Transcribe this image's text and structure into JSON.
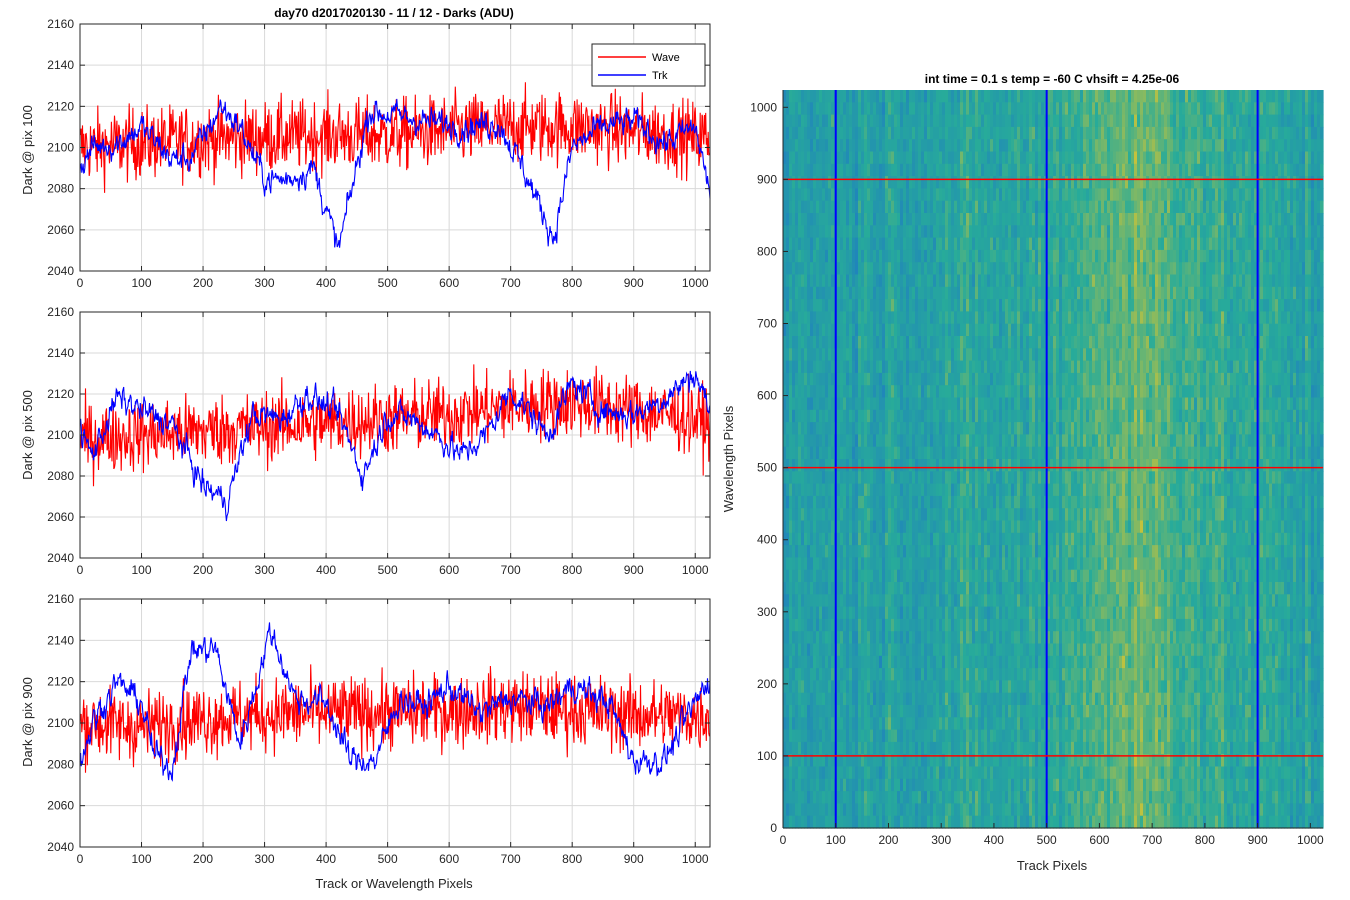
{
  "figure_title": "day70 d2017020130 - 11 / 12 - Darks (ADU)",
  "colors": {
    "wave": "#ff0000",
    "trk": "#0000ff",
    "grid": "#d9d9d9",
    "axis": "#262626",
    "heat_low": "#1f7fc0",
    "heat_mid": "#27ab9a",
    "heat_high": "#c7c33a"
  },
  "chart_data": [
    {
      "type": "line",
      "title": "day70 d2017020130 - 11 / 12 - Darks (ADU)",
      "xlabel": "",
      "ylabel": "Dark @ pix 100",
      "xlim": [
        0,
        1024
      ],
      "ylim": [
        2040,
        2160
      ],
      "xticks": [
        0,
        100,
        200,
        300,
        400,
        500,
        600,
        700,
        800,
        900,
        1000
      ],
      "yticks": [
        2040,
        2060,
        2080,
        2100,
        2120,
        2140,
        2160
      ],
      "grid": true,
      "legend": {
        "placement": "top-right",
        "entries": [
          "Wave",
          "Trk"
        ]
      },
      "series": [
        {
          "name": "Wave",
          "color": "#ff0000",
          "mean": 2105,
          "noise": 16,
          "x": [
            0,
            100,
            200,
            300,
            400,
            500,
            600,
            700,
            800,
            900,
            1000,
            1024
          ],
          "values": [
            2100,
            2102,
            2104,
            2105,
            2106,
            2106,
            2108,
            2110,
            2110,
            2108,
            2105,
            2105
          ]
        },
        {
          "name": "Trk",
          "color": "#0000ff",
          "mean": 2100,
          "noise": 4,
          "x": [
            0,
            20,
            60,
            100,
            150,
            180,
            230,
            260,
            300,
            330,
            380,
            420,
            470,
            520,
            580,
            620,
            680,
            720,
            770,
            800,
            850,
            900,
            950,
            1000,
            1024
          ],
          "values": [
            2090,
            2100,
            2102,
            2110,
            2094,
            2095,
            2120,
            2110,
            2085,
            2084,
            2090,
            2050,
            2118,
            2115,
            2112,
            2110,
            2112,
            2090,
            2056,
            2100,
            2110,
            2113,
            2102,
            2110,
            2078
          ]
        }
      ]
    },
    {
      "type": "line",
      "title": "",
      "xlabel": "",
      "ylabel": "Dark @ pix 500",
      "xlim": [
        0,
        1024
      ],
      "ylim": [
        2040,
        2160
      ],
      "xticks": [
        0,
        100,
        200,
        300,
        400,
        500,
        600,
        700,
        800,
        900,
        1000
      ],
      "yticks": [
        2040,
        2060,
        2080,
        2100,
        2120,
        2140,
        2160
      ],
      "grid": true,
      "series": [
        {
          "name": "Wave",
          "color": "#ff0000",
          "mean": 2105,
          "noise": 16,
          "x": [
            0,
            100,
            200,
            300,
            400,
            500,
            600,
            700,
            800,
            900,
            1000,
            1024
          ],
          "values": [
            2098,
            2100,
            2102,
            2104,
            2106,
            2108,
            2110,
            2114,
            2116,
            2112,
            2108,
            2105
          ]
        },
        {
          "name": "Trk",
          "color": "#0000ff",
          "mean": 2100,
          "noise": 4,
          "x": [
            0,
            20,
            60,
            100,
            150,
            200,
            240,
            280,
            330,
            370,
            420,
            460,
            500,
            540,
            580,
            620,
            660,
            700,
            760,
            800,
            850,
            900,
            950,
            1000,
            1024
          ],
          "values": [
            2102,
            2090,
            2118,
            2112,
            2105,
            2075,
            2068,
            2110,
            2108,
            2120,
            2110,
            2080,
            2110,
            2108,
            2100,
            2090,
            2100,
            2122,
            2100,
            2125,
            2112,
            2110,
            2118,
            2130,
            2112
          ]
        }
      ]
    },
    {
      "type": "line",
      "title": "",
      "xlabel": "Track or Wavelength Pixels",
      "ylabel": "Dark @ pix 900",
      "xlim": [
        0,
        1024
      ],
      "ylim": [
        2040,
        2160
      ],
      "xticks": [
        0,
        100,
        200,
        300,
        400,
        500,
        600,
        700,
        800,
        900,
        1000
      ],
      "yticks": [
        2040,
        2060,
        2080,
        2100,
        2120,
        2140,
        2160
      ],
      "grid": true,
      "series": [
        {
          "name": "Wave",
          "color": "#ff0000",
          "mean": 2102,
          "noise": 16,
          "x": [
            0,
            100,
            200,
            300,
            400,
            500,
            600,
            700,
            800,
            900,
            1000,
            1024
          ],
          "values": [
            2100,
            2098,
            2102,
            2104,
            2105,
            2105,
            2106,
            2108,
            2106,
            2104,
            2103,
            2104
          ]
        },
        {
          "name": "Trk",
          "color": "#0000ff",
          "mean": 2100,
          "noise": 4,
          "x": [
            0,
            20,
            60,
            100,
            120,
            150,
            180,
            220,
            260,
            310,
            350,
            400,
            440,
            480,
            520,
            560,
            600,
            650,
            700,
            760,
            800,
            860,
            900,
            950,
            1000,
            1024
          ],
          "values": [
            2080,
            2100,
            2120,
            2110,
            2085,
            2078,
            2135,
            2136,
            2090,
            2145,
            2112,
            2110,
            2082,
            2082,
            2112,
            2108,
            2118,
            2105,
            2112,
            2108,
            2118,
            2110,
            2082,
            2082,
            2110,
            2122
          ]
        }
      ]
    },
    {
      "type": "heatmap",
      "title": "int time = 0.1 s   temp = -60 C   vhsift = 4.25e-06",
      "xlabel": "Track Pixels",
      "ylabel": "Wavelength Pixels",
      "xlim": [
        0,
        1024
      ],
      "ylim": [
        0,
        1024
      ],
      "xticks": [
        0,
        100,
        200,
        300,
        400,
        500,
        600,
        700,
        800,
        900,
        1000
      ],
      "yticks": [
        0,
        100,
        200,
        300,
        400,
        500,
        600,
        700,
        800,
        900,
        1000
      ],
      "grid": false,
      "vertical_markers": [
        100,
        500,
        900
      ],
      "horizontal_markers": [
        100,
        500,
        900
      ],
      "column_profile": {
        "x": [
          0,
          100,
          200,
          300,
          400,
          500,
          550,
          600,
          650,
          700,
          750,
          800,
          850,
          900,
          1000,
          1024
        ],
        "level": [
          0.35,
          0.38,
          0.4,
          0.42,
          0.42,
          0.45,
          0.55,
          0.65,
          0.7,
          0.68,
          0.62,
          0.55,
          0.48,
          0.45,
          0.38,
          0.35
        ]
      }
    }
  ]
}
